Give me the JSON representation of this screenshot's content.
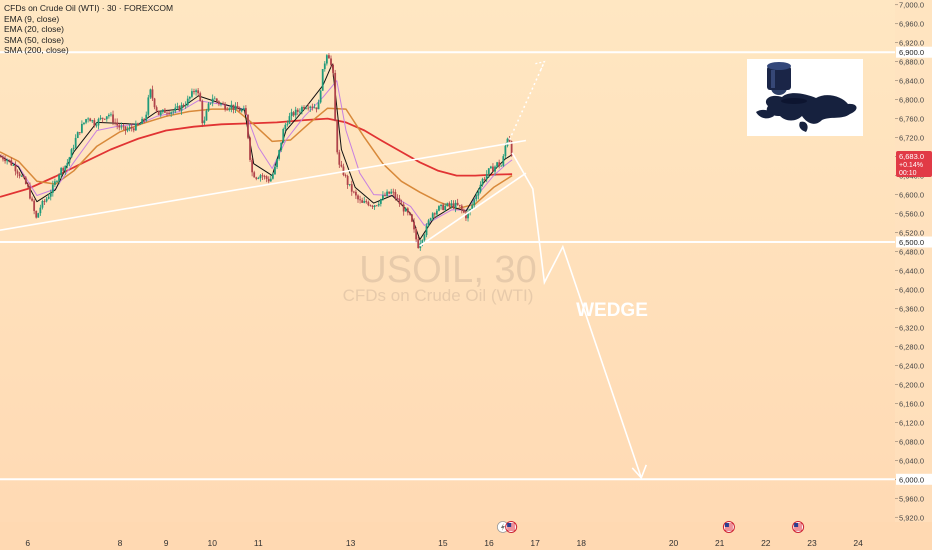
{
  "chart_data": {
    "type": "line",
    "legend": {
      "title": "CFDs on Crude Oil (WTI) · 30 · FOREXCOM",
      "indicators": [
        "EMA (9, close)",
        "EMA (20, close)",
        "SMA (50, close)",
        "SMA (200, close)"
      ]
    },
    "watermark": {
      "symbol": "USOIL, 30",
      "description": "CFDs on Crude Oil (WTI)"
    },
    "annotation": "WEDGE",
    "price_axis": {
      "ylim": [
        5910,
        7010
      ],
      "ticks": [
        7000,
        6960,
        6920,
        6880,
        6840,
        6800,
        6760,
        6720,
        6680,
        6640,
        6600,
        6560,
        6520,
        6480,
        6440,
        6400,
        6360,
        6320,
        6280,
        6240,
        6200,
        6160,
        6120,
        6080,
        6040,
        6000,
        5960,
        5920
      ],
      "tick_labels": [
        "7,000.0",
        "6,960.0",
        "6,920.0",
        "6,880.0",
        "6,840.0",
        "6,800.0",
        "6,760.0",
        "6,720.0",
        "6,680.0",
        "6,640.0",
        "6,600.0",
        "6,560.0",
        "6,520.0",
        "6,480.0",
        "6,440.0",
        "6,400.0",
        "6,360.0",
        "6,320.0",
        "6,280.0",
        "6,240.0",
        "6,200.0",
        "6,160.0",
        "6,120.0",
        "6,080.0",
        "6,040.0",
        "6,000.0",
        "5,960.0",
        "5,920.0"
      ]
    },
    "time_axis": {
      "xlim": [
        5.4,
        24.8
      ],
      "ticks": [
        6,
        8,
        9,
        10,
        11,
        13,
        15,
        16,
        17,
        18,
        20,
        21,
        22,
        23,
        24
      ],
      "tick_labels": [
        "6",
        "8",
        "9",
        "10",
        "11",
        "13",
        "15",
        "16",
        "17",
        "18",
        "20",
        "21",
        "22",
        "23",
        "24"
      ]
    },
    "price_tag": {
      "price": "6,683.0",
      "change": "+0.14%",
      "countdown": "00:10",
      "value": 6683
    },
    "levels": [
      {
        "price": 6900,
        "label": "6,900.0"
      },
      {
        "price": 6500,
        "label": "6,500.0"
      },
      {
        "price": 6000,
        "label": "6,000.0"
      }
    ],
    "price_path": [
      [
        5.4,
        6680
      ],
      [
        5.55,
        6675
      ],
      [
        5.7,
        6660
      ],
      [
        5.85,
        6640
      ],
      [
        6.0,
        6615
      ],
      [
        6.1,
        6580
      ],
      [
        6.18,
        6548
      ],
      [
        6.28,
        6575
      ],
      [
        6.4,
        6590
      ],
      [
        6.55,
        6615
      ],
      [
        6.7,
        6650
      ],
      [
        6.85,
        6665
      ],
      [
        6.95,
        6690
      ],
      [
        7.05,
        6720
      ],
      [
        7.15,
        6740
      ],
      [
        7.3,
        6765
      ],
      [
        7.45,
        6750
      ],
      [
        7.6,
        6760
      ],
      [
        7.75,
        6770
      ],
      [
        7.95,
        6745
      ],
      [
        8.1,
        6735
      ],
      [
        8.25,
        6740
      ],
      [
        8.4,
        6745
      ],
      [
        8.55,
        6760
      ],
      [
        8.65,
        6820
      ],
      [
        8.75,
        6790
      ],
      [
        8.85,
        6768
      ],
      [
        9.0,
        6778
      ],
      [
        9.15,
        6775
      ],
      [
        9.3,
        6783
      ],
      [
        9.45,
        6795
      ],
      [
        9.55,
        6810
      ],
      [
        9.65,
        6825
      ],
      [
        9.75,
        6792
      ],
      [
        9.8,
        6740
      ],
      [
        9.9,
        6782
      ],
      [
        10.0,
        6805
      ],
      [
        10.1,
        6797
      ],
      [
        10.2,
        6790
      ],
      [
        10.3,
        6785
      ],
      [
        10.4,
        6788
      ],
      [
        10.5,
        6780
      ],
      [
        10.6,
        6778
      ],
      [
        10.72,
        6775
      ],
      [
        10.8,
        6700
      ],
      [
        10.85,
        6648
      ],
      [
        10.95,
        6638
      ],
      [
        11.05,
        6642
      ],
      [
        11.15,
        6635
      ],
      [
        11.25,
        6630
      ],
      [
        11.35,
        6650
      ],
      [
        11.45,
        6690
      ],
      [
        11.55,
        6740
      ],
      [
        11.65,
        6760
      ],
      [
        11.75,
        6770
      ],
      [
        11.85,
        6775
      ],
      [
        12.0,
        6788
      ],
      [
        12.1,
        6790
      ],
      [
        12.2,
        6785
      ],
      [
        12.3,
        6785
      ],
      [
        12.38,
        6850
      ],
      [
        12.45,
        6885
      ],
      [
        12.5,
        6905
      ],
      [
        12.56,
        6880
      ],
      [
        12.62,
        6850
      ],
      [
        12.68,
        6720
      ],
      [
        12.75,
        6660
      ],
      [
        12.85,
        6645
      ],
      [
        12.95,
        6620
      ],
      [
        13.05,
        6605
      ],
      [
        13.15,
        6590
      ],
      [
        13.25,
        6580
      ],
      [
        13.35,
        6585
      ],
      [
        13.45,
        6578
      ],
      [
        13.55,
        6580
      ],
      [
        13.65,
        6590
      ],
      [
        13.78,
        6600
      ],
      [
        13.9,
        6605
      ],
      [
        14.0,
        6590
      ],
      [
        14.15,
        6570
      ],
      [
        14.3,
        6550
      ],
      [
        14.38,
        6520
      ],
      [
        14.46,
        6492
      ],
      [
        14.55,
        6510
      ],
      [
        14.65,
        6530
      ],
      [
        14.75,
        6560
      ],
      [
        14.9,
        6570
      ],
      [
        15.05,
        6575
      ],
      [
        15.2,
        6578
      ],
      [
        15.35,
        6575
      ],
      [
        15.5,
        6555
      ],
      [
        15.6,
        6568
      ],
      [
        15.72,
        6600
      ],
      [
        15.85,
        6630
      ],
      [
        16.0,
        6650
      ],
      [
        16.1,
        6656
      ],
      [
        16.18,
        6665
      ],
      [
        16.28,
        6660
      ],
      [
        16.35,
        6700
      ],
      [
        16.42,
        6730
      ],
      [
        16.5,
        6683
      ]
    ],
    "ema9_path": [
      [
        5.4,
        6682
      ],
      [
        5.8,
        6658
      ],
      [
        6.2,
        6585
      ],
      [
        6.6,
        6610
      ],
      [
        7.0,
        6690
      ],
      [
        7.5,
        6752
      ],
      [
        8.0,
        6750
      ],
      [
        8.4,
        6748
      ],
      [
        8.8,
        6775
      ],
      [
        9.3,
        6780
      ],
      [
        9.7,
        6808
      ],
      [
        10.2,
        6792
      ],
      [
        10.7,
        6778
      ],
      [
        10.9,
        6665
      ],
      [
        11.3,
        6640
      ],
      [
        11.6,
        6735
      ],
      [
        12.0,
        6780
      ],
      [
        12.4,
        6830
      ],
      [
        12.6,
        6875
      ],
      [
        12.8,
        6695
      ],
      [
        13.1,
        6615
      ],
      [
        13.5,
        6582
      ],
      [
        13.9,
        6598
      ],
      [
        14.3,
        6560
      ],
      [
        14.5,
        6505
      ],
      [
        14.8,
        6550
      ],
      [
        15.2,
        6574
      ],
      [
        15.5,
        6565
      ],
      [
        15.8,
        6615
      ],
      [
        16.1,
        6650
      ],
      [
        16.35,
        6675
      ],
      [
        16.5,
        6684
      ]
    ],
    "ema20_path": [
      [
        5.4,
        6683
      ],
      [
        5.8,
        6660
      ],
      [
        6.2,
        6598
      ],
      [
        6.6,
        6612
      ],
      [
        7.0,
        6668
      ],
      [
        7.5,
        6735
      ],
      [
        8.0,
        6745
      ],
      [
        8.4,
        6748
      ],
      [
        8.8,
        6765
      ],
      [
        9.3,
        6775
      ],
      [
        9.7,
        6798
      ],
      [
        10.2,
        6790
      ],
      [
        10.7,
        6780
      ],
      [
        11.0,
        6700
      ],
      [
        11.3,
        6655
      ],
      [
        11.6,
        6715
      ],
      [
        12.0,
        6765
      ],
      [
        12.4,
        6805
      ],
      [
        12.7,
        6840
      ],
      [
        12.9,
        6735
      ],
      [
        13.2,
        6645
      ],
      [
        13.5,
        6600
      ],
      [
        13.9,
        6598
      ],
      [
        14.3,
        6575
      ],
      [
        14.6,
        6535
      ],
      [
        14.9,
        6552
      ],
      [
        15.2,
        6568
      ],
      [
        15.5,
        6567
      ],
      [
        15.8,
        6605
      ],
      [
        16.1,
        6640
      ],
      [
        16.35,
        6662
      ],
      [
        16.5,
        6673
      ]
    ],
    "sma50_path": [
      [
        5.4,
        6690
      ],
      [
        5.8,
        6670
      ],
      [
        6.2,
        6628
      ],
      [
        6.6,
        6622
      ],
      [
        7.0,
        6650
      ],
      [
        7.5,
        6702
      ],
      [
        8.0,
        6732
      ],
      [
        8.5,
        6750
      ],
      [
        9.0,
        6765
      ],
      [
        9.5,
        6775
      ],
      [
        10.0,
        6780
      ],
      [
        10.5,
        6780
      ],
      [
        10.9,
        6748
      ],
      [
        11.3,
        6712
      ],
      [
        11.7,
        6715
      ],
      [
        12.1,
        6750
      ],
      [
        12.5,
        6782
      ],
      [
        12.9,
        6780
      ],
      [
        13.3,
        6720
      ],
      [
        13.7,
        6665
      ],
      [
        14.1,
        6628
      ],
      [
        14.5,
        6605
      ],
      [
        14.9,
        6585
      ],
      [
        15.3,
        6570
      ],
      [
        15.7,
        6580
      ],
      [
        16.1,
        6615
      ],
      [
        16.5,
        6640
      ]
    ],
    "sma200_path": [
      [
        5.4,
        6595
      ],
      [
        6.0,
        6612
      ],
      [
        6.6,
        6638
      ],
      [
        7.2,
        6667
      ],
      [
        7.8,
        6695
      ],
      [
        8.4,
        6718
      ],
      [
        9.0,
        6735
      ],
      [
        9.6,
        6743
      ],
      [
        10.2,
        6748
      ],
      [
        10.8,
        6750
      ],
      [
        11.4,
        6752
      ],
      [
        12.0,
        6757
      ],
      [
        12.5,
        6760
      ],
      [
        12.9,
        6752
      ],
      [
        13.3,
        6735
      ],
      [
        13.7,
        6712
      ],
      [
        14.1,
        6690
      ],
      [
        14.5,
        6668
      ],
      [
        14.9,
        6650
      ],
      [
        15.3,
        6640
      ],
      [
        15.7,
        6640
      ],
      [
        16.1,
        6642
      ],
      [
        16.5,
        6643
      ]
    ],
    "wedge_upper": [
      [
        5.4,
        6525
      ],
      [
        16.8,
        6714
      ]
    ],
    "wedge_lower": [
      [
        14.5,
        6492
      ],
      [
        16.8,
        6645
      ]
    ],
    "projection_dotted": [
      [
        16.4,
        6706
      ],
      [
        17.2,
        6880
      ]
    ],
    "projection_path": [
      [
        16.5,
        6688
      ],
      [
        16.95,
        6612
      ],
      [
        17.2,
        6415
      ],
      [
        17.6,
        6490
      ],
      [
        19.3,
        6003
      ]
    ],
    "event_markers": [
      {
        "x": 16.3,
        "type": "flash"
      },
      {
        "x": 16.48,
        "type": "flag"
      },
      {
        "x": 21.2,
        "type": "flag"
      },
      {
        "x": 22.7,
        "type": "flag"
      }
    ],
    "inset_image": "oil-barrel-world-map",
    "colors": {
      "bg_top": "#ffe7c2",
      "bg_bottom": "#ffd9b3",
      "price": "#1f8a70",
      "ema9": "#111111",
      "ema20": "#c77fe0",
      "sma50": "#d8893a",
      "sma200": "#e13333",
      "trend_lines": "#ffffff",
      "price_tag": "#e13a46"
    },
    "grid": false,
    "legend_placement": "top-left"
  }
}
